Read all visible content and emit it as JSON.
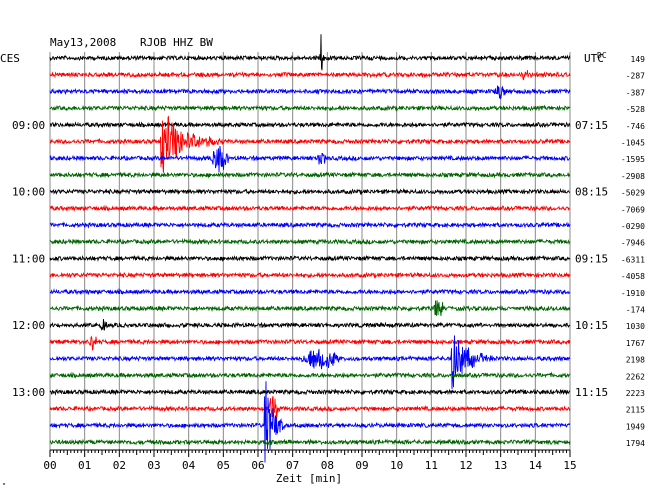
{
  "header": {
    "date": "May13,2008",
    "station": "RJOB HHZ BW",
    "left_tz": "CES",
    "right_tz": "UTC",
    "dc_label": "DC"
  },
  "footer": {
    "xlabel": "Zeit [min]",
    "corner_mark": "\""
  },
  "colors": {
    "trace_cycle": [
      "#000000",
      "#ff0000",
      "#0000ff",
      "#006400"
    ],
    "grid": "#888888",
    "text": "#000000"
  },
  "chart_data": {
    "type": "line",
    "title": "May13,2008   RJOB HHZ BW",
    "xlabel": "Zeit [min]",
    "xlim": [
      0,
      15
    ],
    "xticks": [
      "00",
      "01",
      "02",
      "03",
      "04",
      "05",
      "06",
      "07",
      "08",
      "09",
      "10",
      "11",
      "12",
      "13",
      "14",
      "15"
    ],
    "rows_per_hour": 4,
    "hour_labels_left": [
      {
        "row": 4,
        "label": "09:00"
      },
      {
        "row": 8,
        "label": "10:00"
      },
      {
        "row": 12,
        "label": "11:00"
      },
      {
        "row": 16,
        "label": "12:00"
      },
      {
        "row": 20,
        "label": "13:00"
      }
    ],
    "hour_labels_right": [
      {
        "row": 4,
        "label": "07:15"
      },
      {
        "row": 8,
        "label": "08:15"
      },
      {
        "row": 12,
        "label": "09:15"
      },
      {
        "row": 16,
        "label": "10:15"
      },
      {
        "row": 20,
        "label": "11:15"
      }
    ],
    "dc_offsets": [
      "149",
      "-287",
      "-387",
      "-528",
      "-746",
      "-1045",
      "-1595",
      "-2908",
      "-5029",
      "-7069",
      "-0290",
      "-7946",
      "-6311",
      "-4058",
      "-1910",
      "-174",
      "1030",
      "1767",
      "2198",
      "2262",
      "2223",
      "2115",
      "1949",
      "1794"
    ],
    "events": [
      {
        "row": 0,
        "minute": 7.8,
        "amp": 1.0,
        "dur": 0.25,
        "kind": "spike"
      },
      {
        "row": 1,
        "minute": 13.6,
        "amp": 0.12,
        "dur": 0.3,
        "kind": "burst"
      },
      {
        "row": 2,
        "minute": 12.8,
        "amp": 0.15,
        "dur": 0.4,
        "kind": "burst"
      },
      {
        "row": 5,
        "minute": 3.2,
        "amp": 0.6,
        "dur": 1.8,
        "kind": "quake"
      },
      {
        "row": 6,
        "minute": 4.6,
        "amp": 0.22,
        "dur": 0.6,
        "kind": "burst"
      },
      {
        "row": 6,
        "minute": 7.6,
        "amp": 0.12,
        "dur": 0.4,
        "kind": "burst"
      },
      {
        "row": 15,
        "minute": 11.0,
        "amp": 0.15,
        "dur": 0.4,
        "kind": "burst"
      },
      {
        "row": 16,
        "minute": 1.4,
        "amp": 0.12,
        "dur": 0.3,
        "kind": "burst"
      },
      {
        "row": 17,
        "minute": 1.1,
        "amp": 0.15,
        "dur": 0.3,
        "kind": "burst"
      },
      {
        "row": 18,
        "minute": 7.2,
        "amp": 0.18,
        "dur": 1.2,
        "kind": "burst"
      },
      {
        "row": 18,
        "minute": 11.6,
        "amp": 0.55,
        "dur": 1.2,
        "kind": "quake"
      },
      {
        "row": 21,
        "minute": 6.3,
        "amp": 0.3,
        "dur": 0.3,
        "kind": "burst"
      },
      {
        "row": 22,
        "minute": 6.2,
        "amp": 0.95,
        "dur": 0.6,
        "kind": "quake"
      }
    ]
  }
}
